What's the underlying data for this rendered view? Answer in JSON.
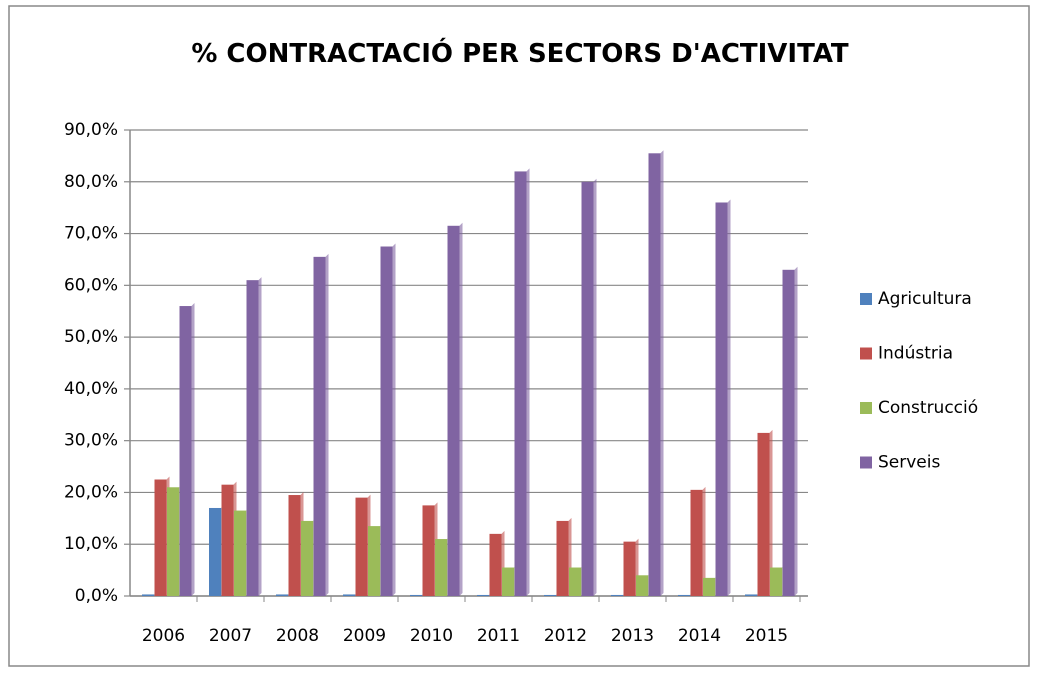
{
  "chart_data": {
    "type": "bar",
    "title": "% CONTRACTACIÓ PER SECTORS D'ACTIVITAT",
    "categories": [
      "2006",
      "2007",
      "2008",
      "2009",
      "2010",
      "2011",
      "2012",
      "2013",
      "2014",
      "2015"
    ],
    "series": [
      {
        "name": "Agricultura",
        "color": "#4f81bd",
        "values": [
          0.3,
          17,
          0.3,
          0.3,
          0.2,
          0.2,
          0.2,
          0.2,
          0.2,
          0.3
        ]
      },
      {
        "name": "Indústria",
        "color": "#c0504d",
        "values": [
          22.5,
          21.5,
          19.5,
          19,
          17.5,
          12,
          14.5,
          10.5,
          20.5,
          31.5
        ]
      },
      {
        "name": "Construcció",
        "color": "#9bbb59",
        "values": [
          21,
          16.5,
          14.5,
          13.5,
          11,
          5.5,
          5.5,
          4,
          3.5,
          5.5
        ]
      },
      {
        "name": "Serveis",
        "color": "#8064a2",
        "values": [
          56,
          61,
          65.5,
          67.5,
          71.5,
          82,
          80,
          85.5,
          76,
          63
        ]
      }
    ],
    "ylim": [
      0,
      90
    ],
    "yticks": [
      {
        "value": 0,
        "label": "0,0%"
      },
      {
        "value": 10,
        "label": "10,0%"
      },
      {
        "value": 20,
        "label": "20,0%"
      },
      {
        "value": 30,
        "label": "30,0%"
      },
      {
        "value": 40,
        "label": "40,0%"
      },
      {
        "value": 50,
        "label": "50,0%"
      },
      {
        "value": 60,
        "label": "60,0%"
      },
      {
        "value": 70,
        "label": "70,0%"
      },
      {
        "value": 80,
        "label": "80,0%"
      },
      {
        "value": 90,
        "label": "90,0%"
      }
    ],
    "grid": true,
    "legend": "right"
  }
}
